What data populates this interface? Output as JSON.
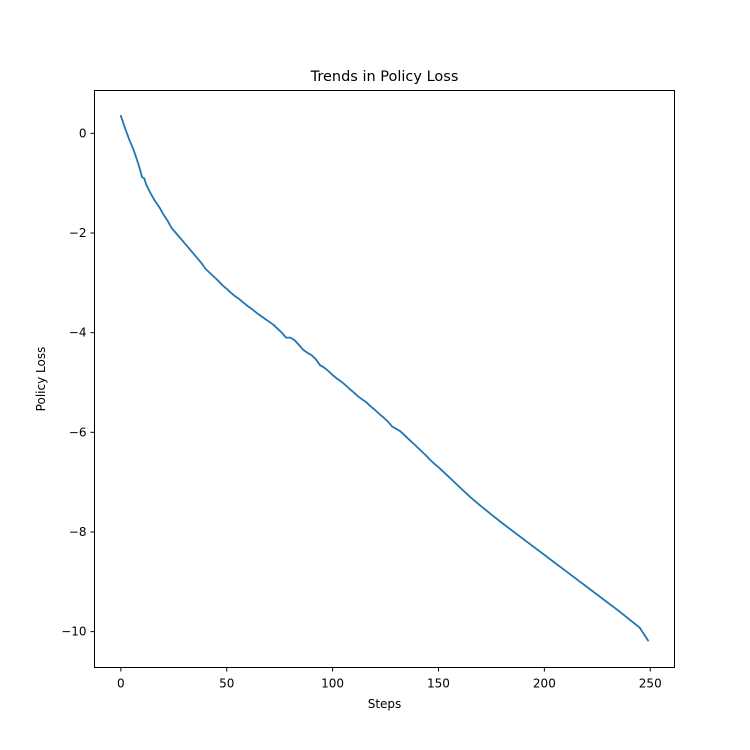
{
  "chart_data": {
    "type": "line",
    "title": "Trends in Policy Loss",
    "xlabel": "Steps",
    "ylabel": "Policy Loss",
    "xlim": [
      -12.45,
      261.45
    ],
    "ylim": [
      -10.72,
      0.86
    ],
    "x_ticks": [
      0,
      50,
      100,
      150,
      200,
      250
    ],
    "y_ticks": [
      0,
      -2,
      -4,
      -6,
      -8,
      -10
    ],
    "x_tick_labels": [
      "0",
      "50",
      "100",
      "150",
      "200",
      "250"
    ],
    "y_tick_labels": [
      "0",
      "−2",
      "−4",
      "−6",
      "−8",
      "−10"
    ],
    "grid": false,
    "legend": "none",
    "series_color": "#1f77b4",
    "series": [
      {
        "x": [
          0,
          2,
          4,
          6,
          8,
          9,
          10,
          11,
          12,
          14,
          16,
          18,
          20,
          22,
          24,
          26,
          28,
          30,
          32,
          34,
          36,
          38,
          40,
          42,
          44,
          46,
          48,
          50,
          52,
          54,
          56,
          58,
          60,
          62,
          64,
          66,
          68,
          70,
          72,
          74,
          76,
          78,
          80,
          82,
          84,
          86,
          88,
          90,
          92,
          94,
          96,
          98,
          100,
          102,
          104,
          106,
          108,
          110,
          112,
          114,
          116,
          118,
          120,
          122,
          124,
          126,
          128,
          130,
          132,
          134,
          136,
          138,
          140,
          142,
          144,
          146,
          148,
          150,
          152,
          154,
          156,
          158,
          160,
          165,
          170,
          175,
          180,
          185,
          190,
          195,
          200,
          205,
          210,
          215,
          220,
          225,
          230,
          235,
          240,
          245,
          249
        ],
        "y": [
          0.35,
          0.1,
          -0.13,
          -0.33,
          -0.58,
          -0.72,
          -0.88,
          -0.9,
          -1.03,
          -1.2,
          -1.35,
          -1.47,
          -1.62,
          -1.75,
          -1.9,
          -2.0,
          -2.1,
          -2.2,
          -2.3,
          -2.4,
          -2.5,
          -2.6,
          -2.72,
          -2.8,
          -2.88,
          -2.96,
          -3.05,
          -3.12,
          -3.2,
          -3.27,
          -3.33,
          -3.4,
          -3.47,
          -3.53,
          -3.6,
          -3.66,
          -3.72,
          -3.78,
          -3.84,
          -3.92,
          -4.0,
          -4.1,
          -4.1,
          -4.15,
          -4.24,
          -4.34,
          -4.4,
          -4.45,
          -4.53,
          -4.65,
          -4.7,
          -4.77,
          -4.85,
          -4.92,
          -4.98,
          -5.05,
          -5.13,
          -5.2,
          -5.28,
          -5.34,
          -5.4,
          -5.48,
          -5.55,
          -5.63,
          -5.7,
          -5.78,
          -5.88,
          -5.93,
          -5.98,
          -6.06,
          -6.14,
          -6.22,
          -6.3,
          -6.38,
          -6.46,
          -6.55,
          -6.63,
          -6.7,
          -6.78,
          -6.86,
          -6.94,
          -7.02,
          -7.1,
          -7.3,
          -7.48,
          -7.65,
          -7.82,
          -7.98,
          -8.14,
          -8.3,
          -8.46,
          -8.62,
          -8.78,
          -8.94,
          -9.1,
          -9.26,
          -9.42,
          -9.58,
          -9.75,
          -9.92,
          -10.18
        ]
      }
    ]
  }
}
